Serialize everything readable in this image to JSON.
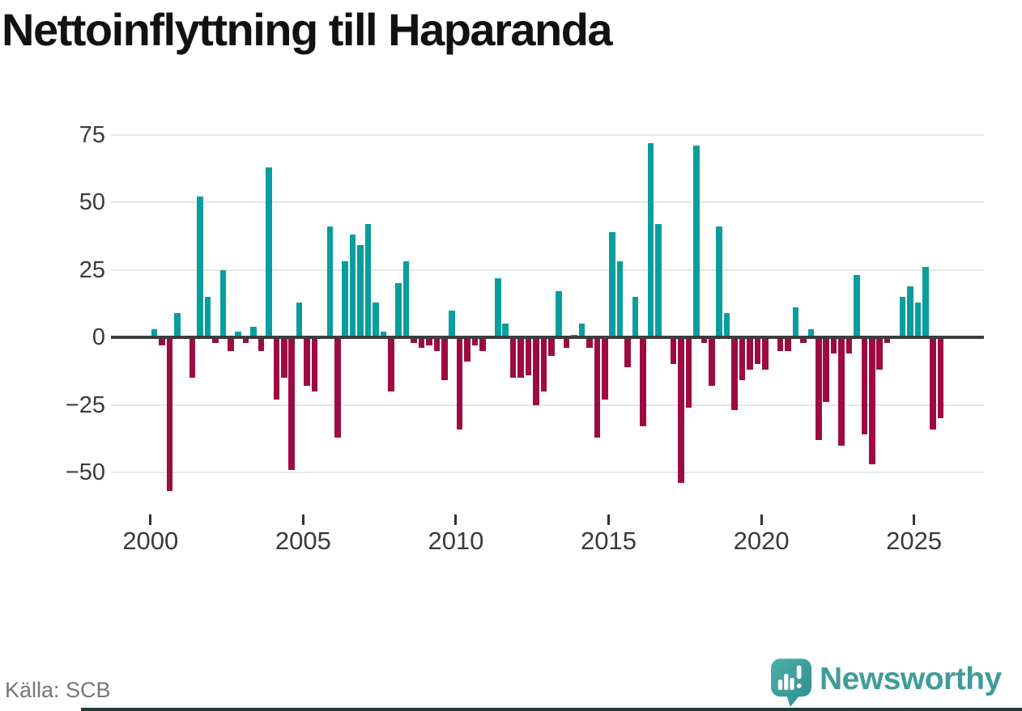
{
  "title": "Nettoinflyttning till Haparanda",
  "source": "Källa: SCB",
  "brand": {
    "name": "Newsworthy",
    "color": "#3f9c99"
  },
  "chart_data": {
    "type": "bar",
    "title": "Nettoinflyttning till Haparanda",
    "frequency": "quarterly",
    "x_start": "2000-Q1",
    "x_end": "2025-Q4",
    "xlabel": "",
    "ylabel": "",
    "ylim": [
      -60,
      80
    ],
    "grid": "horizontal",
    "colors": {
      "positive": "#089e9e",
      "negative": "#9e0b42",
      "axis": "#3d3d3d",
      "gridline": "#e7e7e7"
    },
    "y_ticks": [
      {
        "v": 75,
        "label": "75"
      },
      {
        "v": 50,
        "label": "50"
      },
      {
        "v": 25,
        "label": "25"
      },
      {
        "v": 0,
        "label": "0"
      },
      {
        "v": -25,
        "label": "−25"
      },
      {
        "v": -50,
        "label": "−50"
      }
    ],
    "x_ticks": [
      {
        "year": 2000,
        "label": "2000"
      },
      {
        "year": 2005,
        "label": "2005"
      },
      {
        "year": 2010,
        "label": "2010"
      },
      {
        "year": 2015,
        "label": "2015"
      },
      {
        "year": 2020,
        "label": "2020"
      },
      {
        "year": 2025,
        "label": "2025"
      }
    ],
    "series": [
      {
        "year": 2000,
        "q": [
          3,
          -3,
          -57,
          9
        ]
      },
      {
        "year": 2001,
        "q": [
          0,
          -15,
          52,
          15
        ]
      },
      {
        "year": 2002,
        "q": [
          -2,
          25,
          -5,
          2
        ]
      },
      {
        "year": 2003,
        "q": [
          -2,
          4,
          -5,
          63
        ]
      },
      {
        "year": 2004,
        "q": [
          -23,
          -15,
          -49,
          13
        ]
      },
      {
        "year": 2005,
        "q": [
          -18,
          -20,
          0,
          41
        ]
      },
      {
        "year": 2006,
        "q": [
          -37,
          28,
          38,
          34
        ]
      },
      {
        "year": 2007,
        "q": [
          42,
          13,
          2,
          -20
        ]
      },
      {
        "year": 2008,
        "q": [
          20,
          28,
          -2,
          -4
        ]
      },
      {
        "year": 2009,
        "q": [
          -3,
          -5,
          -16,
          10
        ]
      },
      {
        "year": 2010,
        "q": [
          -34,
          -9,
          -3,
          -5
        ]
      },
      {
        "year": 2011,
        "q": [
          0,
          22,
          5,
          -15
        ]
      },
      {
        "year": 2012,
        "q": [
          -15,
          -14,
          -25,
          -20
        ]
      },
      {
        "year": 2013,
        "q": [
          -7,
          17,
          -4,
          1
        ]
      },
      {
        "year": 2014,
        "q": [
          5,
          -4,
          -37,
          -23
        ]
      },
      {
        "year": 2015,
        "q": [
          39,
          28,
          -11,
          15
        ]
      },
      {
        "year": 2016,
        "q": [
          -33,
          72,
          42,
          0
        ]
      },
      {
        "year": 2017,
        "q": [
          -10,
          -54,
          -26,
          71
        ]
      },
      {
        "year": 2018,
        "q": [
          -2,
          -18,
          41,
          9
        ]
      },
      {
        "year": 2019,
        "q": [
          -27,
          -16,
          -12,
          -10
        ]
      },
      {
        "year": 2020,
        "q": [
          -12,
          0,
          -5,
          -5
        ]
      },
      {
        "year": 2021,
        "q": [
          11,
          -2,
          3,
          -38
        ]
      },
      {
        "year": 2022,
        "q": [
          -24,
          -6,
          -40,
          -6
        ]
      },
      {
        "year": 2023,
        "q": [
          23,
          -36,
          -47,
          -12
        ]
      },
      {
        "year": 2024,
        "q": [
          -2,
          0,
          15,
          19
        ]
      },
      {
        "year": 2025,
        "q": [
          13,
          26,
          -34,
          -30
        ]
      }
    ]
  }
}
